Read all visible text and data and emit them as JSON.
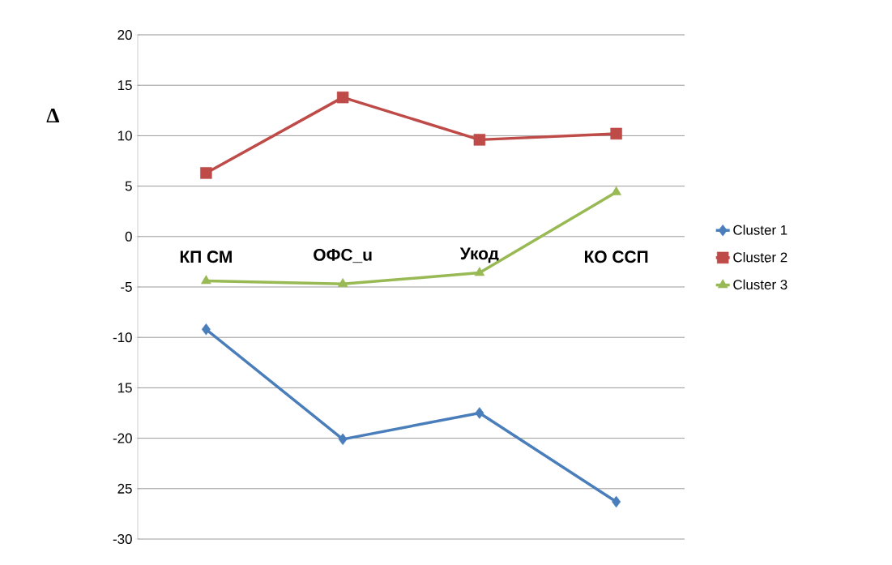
{
  "chart_data": {
    "type": "line",
    "ylabel": "Δ",
    "categories": [
      "КП СМ",
      "ОФС_u",
      "Укод",
      "КО ССП"
    ],
    "series": [
      {
        "name": "Cluster 1",
        "color": "#4a7ebb",
        "marker": "diamond",
        "values": [
          -9.2,
          -20.1,
          -17.5,
          -26.3
        ]
      },
      {
        "name": "Cluster 2",
        "color": "#be4b48",
        "marker": "square",
        "values": [
          6.3,
          13.8,
          9.6,
          10.2
        ]
      },
      {
        "name": "Cluster 3",
        "color": "#98b954",
        "marker": "triangle",
        "values": [
          -4.4,
          -4.7,
          -3.6,
          4.4
        ]
      }
    ],
    "ylim": [
      -30,
      20
    ],
    "yticks": [
      20,
      15,
      10,
      5,
      0,
      -5,
      -10,
      {
        "value": -15,
        "label": "15"
      },
      -20,
      {
        "value": -25,
        "label": "25"
      },
      -30
    ],
    "grid": "y",
    "legend": "right",
    "line_style": "solid"
  }
}
